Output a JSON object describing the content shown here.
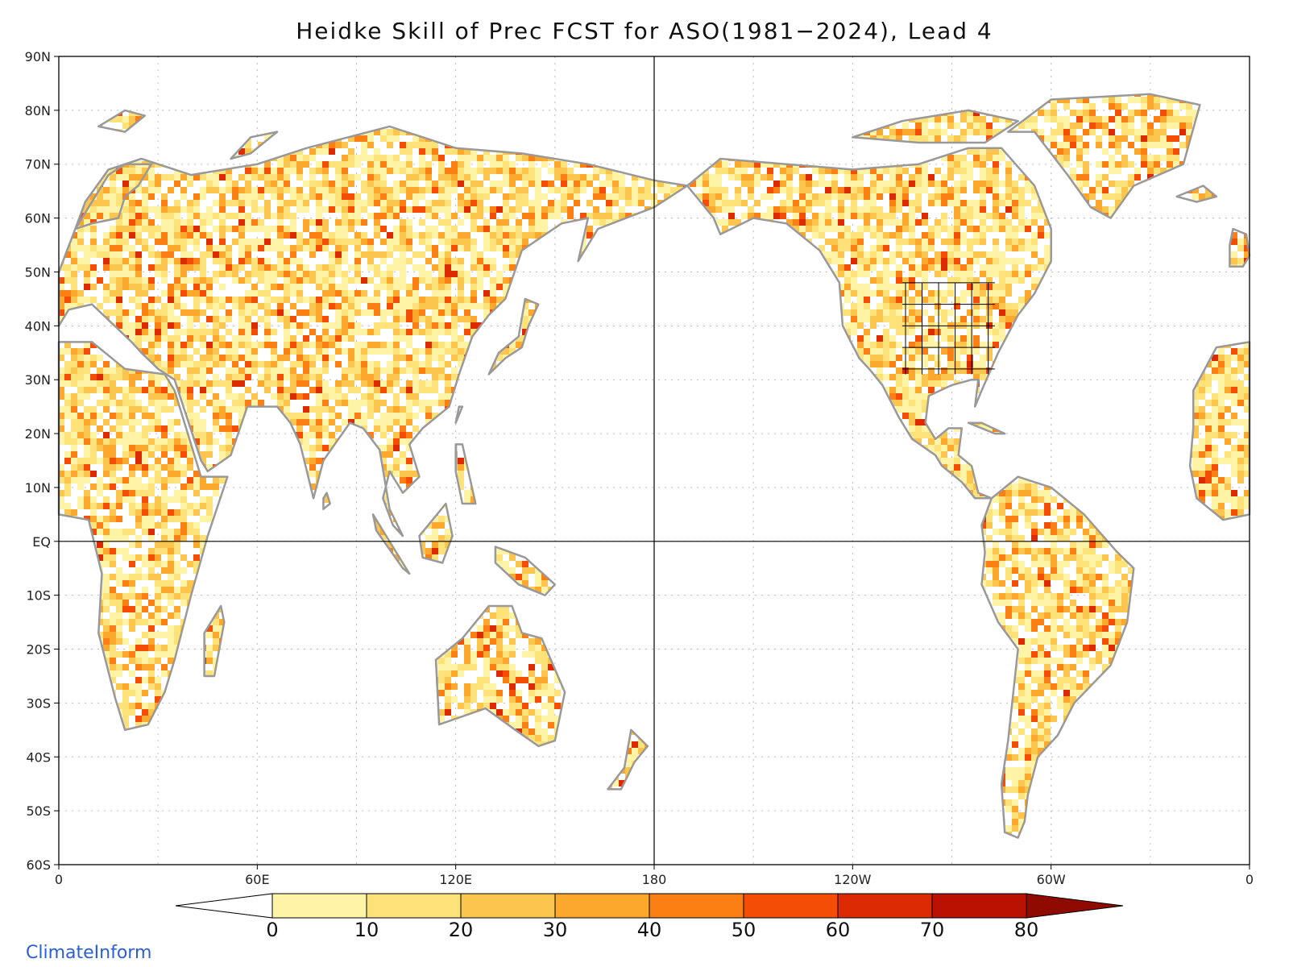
{
  "title": "Heidke Skill of Prec FCST for ASO(1981−2024), Lead 4",
  "credit": "ClimateInform",
  "axes": {
    "lat_labels": [
      "90N",
      "80N",
      "70N",
      "60N",
      "50N",
      "40N",
      "30N",
      "20N",
      "10N",
      "EQ",
      "10S",
      "20S",
      "30S",
      "40S",
      "50S",
      "60S"
    ],
    "lon_labels": [
      "0",
      "60E",
      "120E",
      "180",
      "120W",
      "60W",
      "0"
    ]
  },
  "colorbar": {
    "ticks": [
      "0",
      "10",
      "20",
      "30",
      "40",
      "50",
      "60",
      "70",
      "80"
    ],
    "colors": [
      "#ffffff",
      "#fff3a6",
      "#fde27a",
      "#fcc64e",
      "#fca82c",
      "#fc7f14",
      "#f44e06",
      "#dc2a03",
      "#b91102",
      "#8f0a00"
    ]
  },
  "colors": {
    "land_outline": "#999999",
    "lakes": "#000000",
    "grid": "#bbbbbb"
  },
  "chart_data": {
    "type": "heatmap",
    "title": "Heidke Skill of Prec FCST for ASO(1981−2024), Lead 4",
    "lat_range": [
      -60,
      90
    ],
    "lon_range": [
      0,
      360
    ],
    "levels": [
      0,
      10,
      20,
      30,
      40,
      50,
      60,
      70,
      80
    ],
    "grid": true,
    "legend": "bottom"
  }
}
